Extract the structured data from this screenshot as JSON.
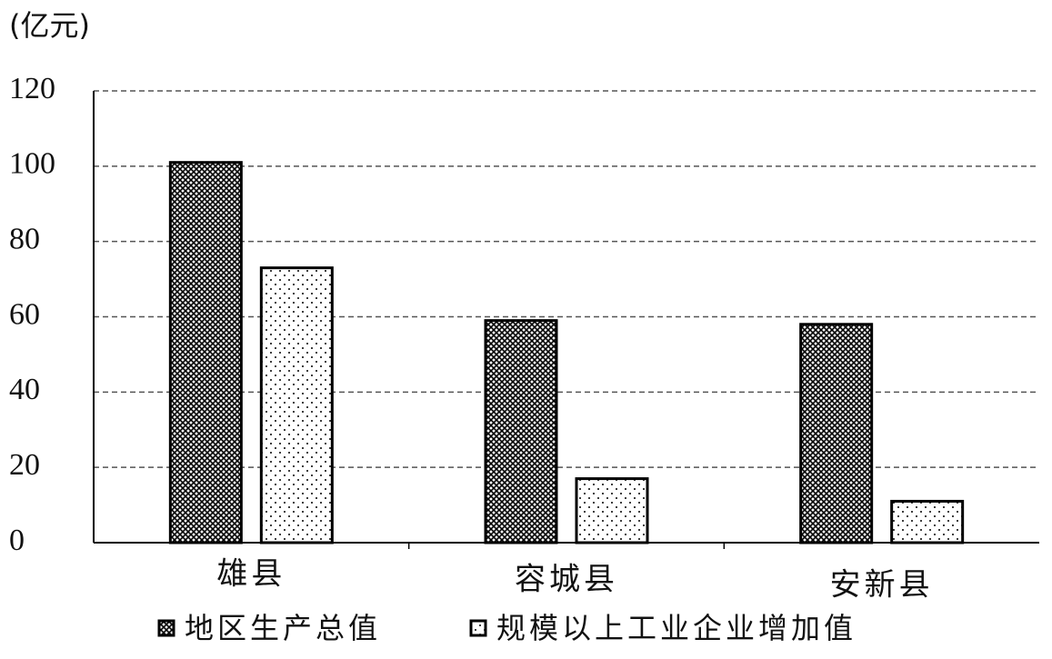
{
  "chart_data": {
    "type": "bar",
    "y_label": "(亿元)",
    "categories": [
      "雄县",
      "容城县",
      "安新县"
    ],
    "series": [
      {
        "name": "地区生产总值",
        "color": "#000000",
        "pattern": "crosshatch",
        "values": [
          101,
          59,
          58
        ]
      },
      {
        "name": "规模以上工业企业增加值",
        "color": "#000000",
        "pattern": "dots",
        "values": [
          73,
          17,
          11
        ]
      }
    ],
    "ylim": [
      0,
      120
    ],
    "yticks": [
      0,
      20,
      40,
      60,
      80,
      100,
      120
    ],
    "grid": true,
    "legend": "bottom"
  }
}
